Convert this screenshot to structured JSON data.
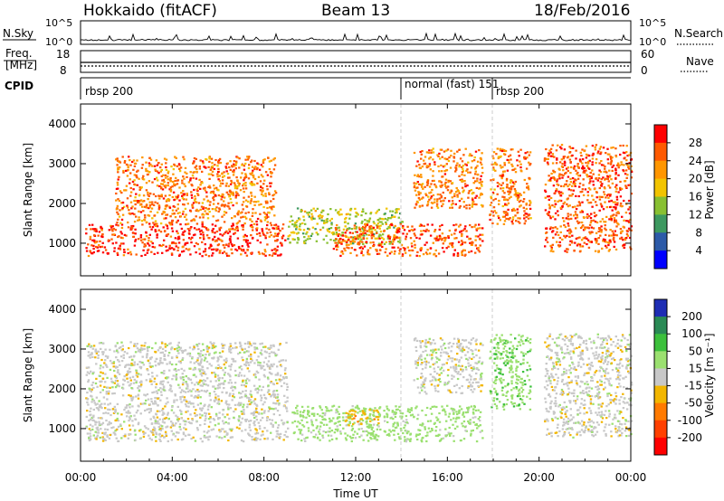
{
  "header": {
    "station": "Hokkaido (fitACF)",
    "beam": "Beam 13",
    "date": "18/Feb/2016"
  },
  "sky_panel": {
    "left_label": "N.Sky",
    "right_label": "N.Search",
    "left_ticks": [
      "10^5",
      "10^0"
    ],
    "right_ticks": [
      "10^5",
      "10^0"
    ]
  },
  "freq_panel": {
    "left_label_1": "Freq.",
    "left_label_2": "[MHz]",
    "right_label": "Nave",
    "left_ticks": [
      "18",
      "8"
    ],
    "right_ticks": [
      "60",
      "0"
    ]
  },
  "cpid_panel": {
    "label": "CPID",
    "segments": [
      {
        "name": "rbsp 200",
        "start_hour": 0
      },
      {
        "name": "normal (fast) 151",
        "start_hour": 14
      },
      {
        "name": "rbsp 200",
        "start_hour": 18
      }
    ]
  },
  "x_axis": {
    "label": "Time UT",
    "ticks": [
      "00:00",
      "04:00",
      "08:00",
      "12:00",
      "16:00",
      "20:00",
      "00:00"
    ],
    "range_hours": [
      0,
      24
    ]
  },
  "power_panel": {
    "ylabel": "Slant Range [km]",
    "yticks": [
      "1000",
      "2000",
      "3000",
      "4000"
    ],
    "cbar_label": "Power [dB]",
    "cbar_ticks": [
      "28",
      "24",
      "20",
      "16",
      "12",
      "8",
      "4"
    ],
    "cbar_colors": [
      "#ff0000",
      "#ff5a00",
      "#ff9600",
      "#f2c400",
      "#88c032",
      "#3d9960",
      "#2c5aa8",
      "#0000ff"
    ]
  },
  "velocity_panel": {
    "ylabel": "Slant Range [km]",
    "yticks": [
      "1000",
      "2000",
      "3000",
      "4000"
    ],
    "cbar_label": "Velocity [m s⁻¹]",
    "cbar_ticks": [
      "200",
      "100",
      "50",
      "15",
      "-15",
      "-50",
      "-100",
      "-200"
    ],
    "cbar_colors": [
      "#1e2db4",
      "#2a8a55",
      "#3cc03c",
      "#9be070",
      "#c8c8c8",
      "#f2b600",
      "#ff7a00",
      "#ff4000",
      "#ff0000"
    ]
  },
  "chart_data": {
    "type": "heatmap",
    "x_range_hours": [
      0,
      24
    ],
    "y_range_km": [
      180,
      4500
    ],
    "power_clusters_dB": [
      {
        "t0": 0.2,
        "t1": 8.9,
        "r0": 700,
        "r1": 1500,
        "value": 28
      },
      {
        "t0": 1.5,
        "t1": 8.5,
        "r0": 1500,
        "r1": 3200,
        "value": 24
      },
      {
        "t0": 9.0,
        "t1": 14.0,
        "r0": 1000,
        "r1": 1900,
        "value": 16
      },
      {
        "t0": 11.0,
        "t1": 17.5,
        "r0": 700,
        "r1": 1500,
        "value": 26
      },
      {
        "t0": 14.5,
        "t1": 17.5,
        "r0": 1900,
        "r1": 3400,
        "value": 24
      },
      {
        "t0": 17.8,
        "t1": 19.6,
        "r0": 1500,
        "r1": 3400,
        "value": 24
      },
      {
        "t0": 20.2,
        "t1": 24.0,
        "r0": 800,
        "r1": 3500,
        "value": 26
      }
    ],
    "velocity_clusters_ms": [
      {
        "t0": 0.2,
        "t1": 9.0,
        "r0": 700,
        "r1": 3200,
        "value": 0
      },
      {
        "t0": 9.2,
        "t1": 17.5,
        "r0": 700,
        "r1": 1600,
        "value": 30
      },
      {
        "t0": 11.5,
        "t1": 13.0,
        "r0": 1100,
        "r1": 1500,
        "value": -40
      },
      {
        "t0": 14.5,
        "t1": 17.5,
        "r0": 1900,
        "r1": 3300,
        "value": 0
      },
      {
        "t0": 17.8,
        "t1": 19.6,
        "r0": 1500,
        "r1": 3400,
        "value": 40
      },
      {
        "t0": 20.2,
        "t1": 24.0,
        "r0": 800,
        "r1": 3400,
        "value": 0
      }
    ]
  }
}
